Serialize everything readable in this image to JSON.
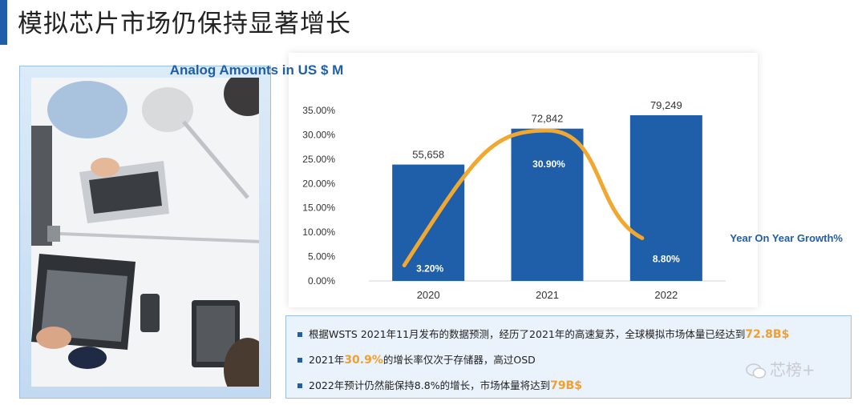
{
  "page": {
    "title": "模拟芯片市场仍保持显著增长"
  },
  "chart_data": {
    "type": "bar",
    "title": "Analog Amounts in US $ M",
    "categories": [
      "2020",
      "2021",
      "2022"
    ],
    "bar_values": [
      55658,
      72842,
      79249
    ],
    "bar_labels": [
      "55,658",
      "72,842",
      "79,249"
    ],
    "bar_color": "#1f5ea8",
    "line_series": {
      "name": "Year On Year Growth%",
      "values": [
        3.2,
        30.9,
        8.8
      ],
      "labels": [
        "3.20%",
        "30.90%",
        "8.80%"
      ],
      "color": "#f0a830"
    },
    "y_ticks": [
      "35.00%",
      "30.00%",
      "25.00%",
      "20.00%",
      "15.00%",
      "10.00%",
      "5.00%",
      "0.00%"
    ],
    "ylim_percent": [
      0,
      35
    ],
    "legend_position": "right"
  },
  "bullets": [
    {
      "text": "根据WSTS 2021年11月发布的数据预测，经历了2021年的高速复苏，全球模拟市场体量已经达到",
      "highlight": "72.8B$"
    },
    {
      "text_pre": "2021年",
      "highlight": "30.9%",
      "text": "的增长率仅次于存储器，高过OSD"
    },
    {
      "text": "2022年预计仍然能保持8.8%的增长，市场体量将达到",
      "highlight": "79B$"
    }
  ],
  "watermark": "芯榜+"
}
